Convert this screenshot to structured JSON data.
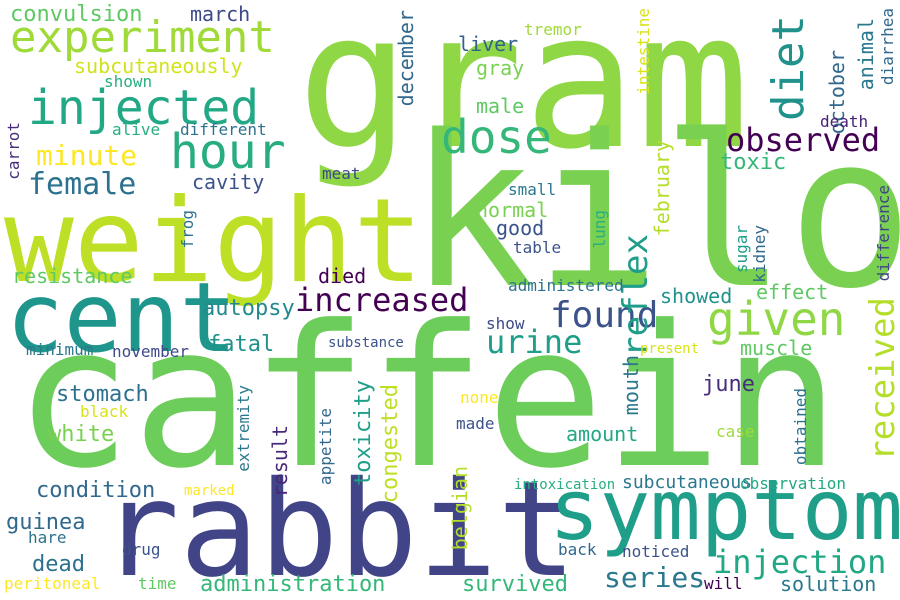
{
  "words": [
    {
      "text": "gram",
      "color": "#8fd744"
    },
    {
      "text": "kilo",
      "color": "#7ad151"
    },
    {
      "text": "caffein",
      "color": "#6ccd5a"
    },
    {
      "text": "weight",
      "color": "#bddf26"
    },
    {
      "text": "rabbit",
      "color": "#414487"
    },
    {
      "text": "symptom",
      "color": "#1f9e89"
    },
    {
      "text": "cent",
      "color": "#1f968b"
    },
    {
      "text": "injected",
      "color": "#22a884"
    },
    {
      "text": "experiment",
      "color": "#a0da39"
    },
    {
      "text": "hour",
      "color": "#27ad81"
    },
    {
      "text": "dose",
      "color": "#35b779"
    },
    {
      "text": "diet",
      "color": "#21918c"
    },
    {
      "text": "increased",
      "color": "#440154"
    },
    {
      "text": "given",
      "color": "#8fd744"
    },
    {
      "text": "observed",
      "color": "#440154"
    },
    {
      "text": "received",
      "color": "#b5de2b"
    },
    {
      "text": "found",
      "color": "#3b528b"
    },
    {
      "text": "urine",
      "color": "#1f9e89"
    },
    {
      "text": "injection",
      "color": "#22a884"
    },
    {
      "text": "series",
      "color": "#2a788e"
    },
    {
      "text": "female",
      "color": "#2c728e"
    },
    {
      "text": "minute",
      "color": "#fde725"
    },
    {
      "text": "reflex",
      "color": "#1f9e89"
    },
    {
      "text": "convulsion",
      "color": "#5ec962"
    },
    {
      "text": "subcutaneously",
      "color": "#d2e21b"
    },
    {
      "text": "march",
      "color": "#3e4989"
    },
    {
      "text": "december",
      "color": "#31688e"
    },
    {
      "text": "liver",
      "color": "#33638d"
    },
    {
      "text": "gray",
      "color": "#7ad151"
    },
    {
      "text": "male",
      "color": "#5ec962"
    },
    {
      "text": "tremor",
      "color": "#a0da39"
    },
    {
      "text": "intestine",
      "color": "#d8e219"
    },
    {
      "text": "october",
      "color": "#31688e"
    },
    {
      "text": "animal",
      "color": "#2a788e"
    },
    {
      "text": "diarrhea",
      "color": "#31688e"
    },
    {
      "text": "death",
      "color": "#482173"
    },
    {
      "text": "shown",
      "color": "#29af7f"
    },
    {
      "text": "alive",
      "color": "#26ad81"
    },
    {
      "text": "different",
      "color": "#2c728e"
    },
    {
      "text": "carrot",
      "color": "#472d7b"
    },
    {
      "text": "cavity",
      "color": "#3b528b"
    },
    {
      "text": "meat",
      "color": "#3e4989"
    },
    {
      "text": "toxic",
      "color": "#35b779"
    },
    {
      "text": "normal",
      "color": "#7ad151"
    },
    {
      "text": "good",
      "color": "#3b528b"
    },
    {
      "text": "small",
      "color": "#2a788e"
    },
    {
      "text": "february",
      "color": "#b5de2b"
    },
    {
      "text": "frog",
      "color": "#2c728e"
    },
    {
      "text": "lung",
      "color": "#29af7f"
    },
    {
      "text": "table",
      "color": "#3b528b"
    },
    {
      "text": "sugar",
      "color": "#1f9e89"
    },
    {
      "text": "kidney",
      "color": "#31688e"
    },
    {
      "text": "difference",
      "color": "#414487"
    },
    {
      "text": "resistance",
      "color": "#5ec962"
    },
    {
      "text": "died",
      "color": "#440154"
    },
    {
      "text": "autopsy",
      "color": "#23898e"
    },
    {
      "text": "administered",
      "color": "#2c728e"
    },
    {
      "text": "effect",
      "color": "#5ec962"
    },
    {
      "text": "showed",
      "color": "#21918c"
    },
    {
      "text": "fatal",
      "color": "#21918c"
    },
    {
      "text": "minimum",
      "color": "#2a788e"
    },
    {
      "text": "november",
      "color": "#3e4989"
    },
    {
      "text": "substance",
      "color": "#3b528b"
    },
    {
      "text": "show",
      "color": "#3e4989"
    },
    {
      "text": "muscle",
      "color": "#5ec962"
    },
    {
      "text": "present",
      "color": "#d8e219"
    },
    {
      "text": "mouth",
      "color": "#2a788e"
    },
    {
      "text": "june",
      "color": "#472d7b"
    },
    {
      "text": "stomach",
      "color": "#2c728e"
    },
    {
      "text": "black",
      "color": "#d8e219"
    },
    {
      "text": "white",
      "color": "#7ad151"
    },
    {
      "text": "extremity",
      "color": "#2a788e"
    },
    {
      "text": "result",
      "color": "#482878"
    },
    {
      "text": "appetite",
      "color": "#31688e"
    },
    {
      "text": "toxicity",
      "color": "#1f9e89"
    },
    {
      "text": "congested",
      "color": "#bddf26"
    },
    {
      "text": "none",
      "color": "#fde725"
    },
    {
      "text": "made",
      "color": "#3b528b"
    },
    {
      "text": "amount",
      "color": "#22a884"
    },
    {
      "text": "case",
      "color": "#a0da39"
    },
    {
      "text": "obtained",
      "color": "#2c728e"
    },
    {
      "text": "condition",
      "color": "#31688e"
    },
    {
      "text": "belgian",
      "color": "#b5de2b"
    },
    {
      "text": "intoxication",
      "color": "#29af7f"
    },
    {
      "text": "subcutaneous",
      "color": "#2a788e"
    },
    {
      "text": "observation",
      "color": "#22a884"
    },
    {
      "text": "marked",
      "color": "#fde725"
    },
    {
      "text": "guinea",
      "color": "#31688e"
    },
    {
      "text": "hare",
      "color": "#2c728e"
    },
    {
      "text": "drug",
      "color": "#3b528b"
    },
    {
      "text": "back",
      "color": "#31688e"
    },
    {
      "text": "noticed",
      "color": "#3b528b"
    },
    {
      "text": "dead",
      "color": "#2c728e"
    },
    {
      "text": "peritoneal",
      "color": "#fde725"
    },
    {
      "text": "time",
      "color": "#5ec962"
    },
    {
      "text": "administration",
      "color": "#35b779"
    },
    {
      "text": "survived",
      "color": "#35b779"
    },
    {
      "text": "will",
      "color": "#440154"
    },
    {
      "text": "solution",
      "color": "#2a788e"
    }
  ]
}
